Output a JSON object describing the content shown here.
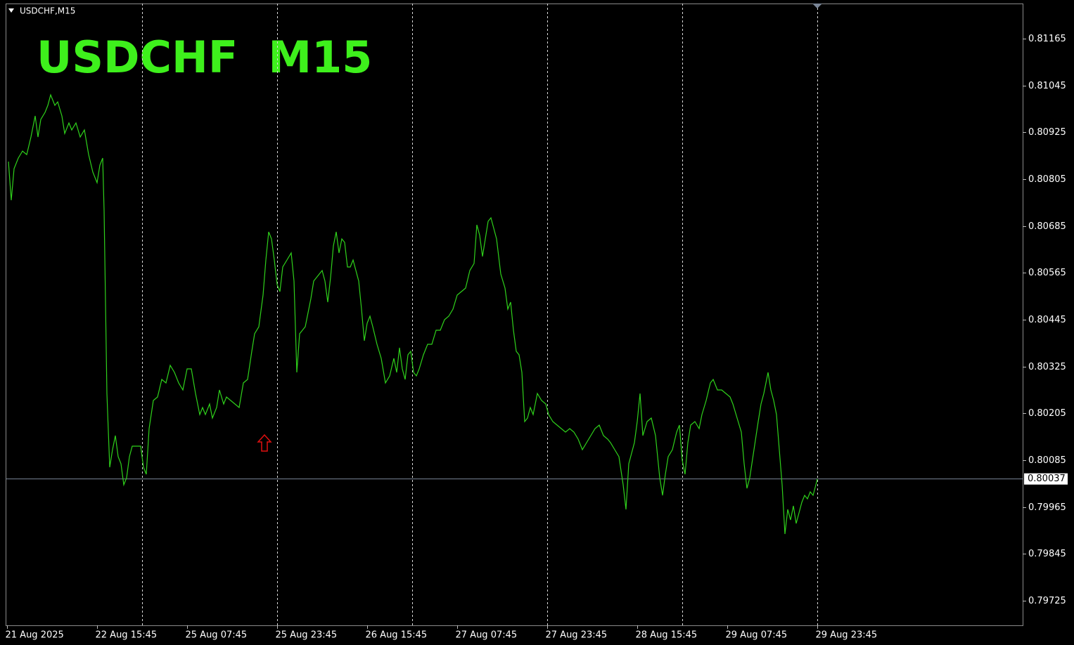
{
  "chart_data": {
    "type": "line",
    "header": "USDCHF,M15",
    "title": "USDCHF  M15",
    "color": "#2fd11b",
    "x": [
      1,
      3,
      5,
      8,
      11,
      14,
      17,
      20,
      22,
      24,
      27,
      29,
      31,
      34,
      36,
      39,
      41,
      44,
      46,
      49,
      52,
      55,
      58,
      61,
      64,
      66,
      68,
      69,
      71,
      73,
      75,
      77,
      79,
      81,
      83,
      85,
      87,
      89,
      92,
      95,
      97,
      99,
      101,
      104,
      107,
      110,
      113,
      116,
      119,
      122,
      125,
      128,
      131,
      134,
      137,
      139,
      141,
      144,
      146,
      149,
      151,
      154,
      156,
      159,
      162,
      165,
      168,
      171,
      174,
      176,
      179,
      182,
      184,
      186,
      188,
      190,
      192,
      194,
      196,
      199,
      202,
      204,
      206,
      208,
      210,
      212,
      214,
      216,
      218,
      220,
      222,
      224,
      226,
      228,
      230,
      232,
      234,
      236,
      238,
      240,
      242,
      244,
      246,
      248,
      250,
      252,
      254,
      256,
      258,
      260,
      263,
      266,
      269,
      272,
      275,
      277,
      279,
      281,
      283,
      285,
      287,
      289,
      291,
      293,
      296,
      299,
      302,
      305,
      308,
      311,
      314,
      317,
      320,
      323,
      326,
      329,
      332,
      334,
      336,
      338,
      340,
      342,
      344,
      346,
      348,
      351,
      354,
      356,
      358,
      360,
      362,
      364,
      366,
      368,
      370,
      372,
      374,
      377,
      380,
      383,
      385,
      388,
      391,
      394,
      397,
      400,
      403,
      406,
      409,
      412,
      415,
      418,
      421,
      424,
      427,
      429,
      432,
      435,
      438,
      440,
      442,
      444,
      446,
      448,
      450,
      452,
      455,
      458,
      461,
      464,
      466,
      468,
      470,
      473,
      476,
      478,
      480,
      482,
      484,
      486,
      489,
      492,
      494,
      497,
      500,
      502,
      505,
      508,
      511,
      514,
      516,
      519,
      522,
      524,
      526,
      528,
      531,
      534,
      536,
      538,
      540,
      541,
      543,
      545,
      547,
      549,
      551,
      553,
      555,
      557,
      559,
      561,
      563,
      565,
      567,
      569,
      571,
      573,
      575,
      576
    ],
    "values": [
      0.8085,
      0.80751,
      0.80832,
      0.80859,
      0.80877,
      0.80868,
      0.80913,
      0.80967,
      0.80913,
      0.80958,
      0.80976,
      0.80994,
      0.81021,
      0.80994,
      0.81003,
      0.80967,
      0.80922,
      0.80949,
      0.80931,
      0.80949,
      0.80913,
      0.80931,
      0.80868,
      0.80823,
      0.80796,
      0.80841,
      0.80859,
      0.80724,
      0.80256,
      0.80067,
      0.80112,
      0.80148,
      0.80094,
      0.80076,
      0.80022,
      0.8004,
      0.80094,
      0.80121,
      0.80121,
      0.80121,
      0.80067,
      0.80049,
      0.80166,
      0.80238,
      0.80247,
      0.80292,
      0.80283,
      0.80328,
      0.8031,
      0.80283,
      0.80265,
      0.80319,
      0.80319,
      0.80256,
      0.80202,
      0.8022,
      0.80202,
      0.80229,
      0.80193,
      0.8022,
      0.80265,
      0.80229,
      0.80247,
      0.80238,
      0.80229,
      0.8022,
      0.80283,
      0.80292,
      0.80364,
      0.80409,
      0.80427,
      0.80508,
      0.80598,
      0.8067,
      0.80652,
      0.80598,
      0.80535,
      0.80517,
      0.8058,
      0.80598,
      0.80616,
      0.80544,
      0.8031,
      0.80409,
      0.80418,
      0.80427,
      0.80463,
      0.80499,
      0.80544,
      0.80553,
      0.80562,
      0.80571,
      0.80544,
      0.8049,
      0.80553,
      0.80634,
      0.8067,
      0.80616,
      0.80652,
      0.80643,
      0.8058,
      0.8058,
      0.80598,
      0.80571,
      0.80544,
      0.80472,
      0.80391,
      0.80436,
      0.80454,
      0.80427,
      0.80382,
      0.80346,
      0.80283,
      0.80301,
      0.80346,
      0.8031,
      0.80373,
      0.80319,
      0.80292,
      0.80355,
      0.80364,
      0.8031,
      0.80301,
      0.80319,
      0.80355,
      0.80382,
      0.80382,
      0.80418,
      0.80418,
      0.80445,
      0.80454,
      0.80472,
      0.80508,
      0.80517,
      0.80526,
      0.80571,
      0.80589,
      0.80688,
      0.80661,
      0.80607,
      0.80652,
      0.80697,
      0.80706,
      0.80679,
      0.80652,
      0.80562,
      0.80526,
      0.80472,
      0.8049,
      0.80418,
      0.80364,
      0.80355,
      0.8031,
      0.80184,
      0.80193,
      0.8022,
      0.80202,
      0.80256,
      0.80238,
      0.80229,
      0.80202,
      0.80184,
      0.80175,
      0.80166,
      0.80157,
      0.80166,
      0.80157,
      0.80139,
      0.80112,
      0.8013,
      0.80148,
      0.80166,
      0.80175,
      0.80148,
      0.80139,
      0.8013,
      0.80112,
      0.80094,
      0.80022,
      0.79959,
      0.80076,
      0.80103,
      0.8013,
      0.80184,
      0.80256,
      0.80148,
      0.80184,
      0.80193,
      0.80148,
      0.8004,
      0.79995,
      0.80049,
      0.80094,
      0.80112,
      0.80157,
      0.80175,
      0.80085,
      0.80049,
      0.8013,
      0.80175,
      0.80184,
      0.80166,
      0.80202,
      0.80238,
      0.80283,
      0.80292,
      0.80265,
      0.80265,
      0.80256,
      0.80247,
      0.80229,
      0.80193,
      0.80157,
      0.80076,
      0.80013,
      0.8004,
      0.80112,
      0.80184,
      0.80229,
      0.80256,
      0.80292,
      0.8031,
      0.80265,
      0.80238,
      0.80202,
      0.80112,
      0.80022,
      0.79896,
      0.79959,
      0.79932,
      0.79968,
      0.79923,
      0.7995,
      0.79977,
      0.79995,
      0.79986,
      0.80004,
      0.79995,
      0.80022,
      0.80037
    ],
    "xlim": [
      0,
      722
    ],
    "ylim": [
      0.79662,
      0.81255
    ],
    "yticks": [
      0.81165,
      0.81045,
      0.80925,
      0.80805,
      0.80685,
      0.80565,
      0.80445,
      0.80325,
      0.80205,
      0.80085,
      0.79965,
      0.79845,
      0.79725
    ],
    "xticks": [
      {
        "value": 0,
        "label": "21 Aug 2025"
      },
      {
        "value": 64,
        "label": "22 Aug 15:45"
      },
      {
        "value": 128,
        "label": "25 Aug 07:45"
      },
      {
        "value": 192,
        "label": "25 Aug 23:45"
      },
      {
        "value": 256,
        "label": "26 Aug 15:45"
      },
      {
        "value": 320,
        "label": "27 Aug 07:45"
      },
      {
        "value": 384,
        "label": "27 Aug 23:45"
      },
      {
        "value": 448,
        "label": "28 Aug 15:45"
      },
      {
        "value": 512,
        "label": "29 Aug 07:45"
      },
      {
        "value": 576,
        "label": "29 Aug 23:45"
      }
    ],
    "xgrid": [
      96,
      192,
      288,
      384,
      480,
      576
    ],
    "current_price": 0.80037,
    "arrow": {
      "x": 183,
      "y": 0.8013,
      "color": "#e01010"
    }
  }
}
